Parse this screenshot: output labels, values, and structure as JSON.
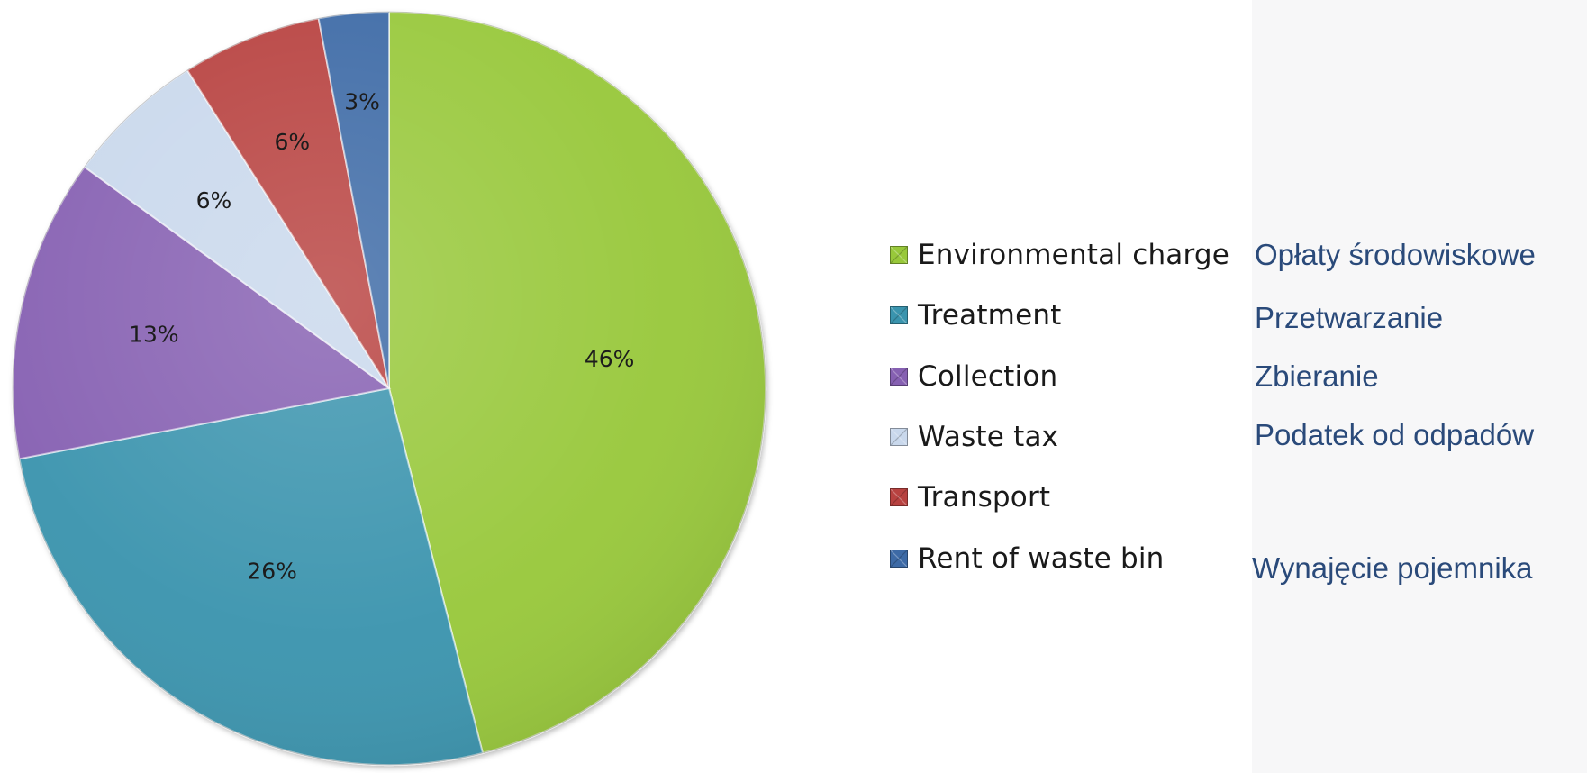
{
  "chart_data": {
    "type": "pie",
    "slices": [
      {
        "label": "Environmental charge",
        "value": 46,
        "value_label": "46%",
        "color": "#98c83a"
      },
      {
        "label": "Treatment",
        "value": 26,
        "value_label": "26%",
        "color": "#3a94ae"
      },
      {
        "label": "Collection",
        "value": 13,
        "value_label": "13%",
        "color": "#8660b2"
      },
      {
        "label": "Waste tax",
        "value": 6,
        "value_label": "6%",
        "color": "#c9d8ec"
      },
      {
        "label": "Transport",
        "value": 6,
        "value_label": "6%",
        "color": "#b84240"
      },
      {
        "label": "Rent of waste bin",
        "value": 3,
        "value_label": "3%",
        "color": "#3d6aa6"
      }
    ],
    "legend_position": "right"
  },
  "translations": [
    "Opłaty środowiskowe",
    "Przetwarzanie",
    "Zbieranie",
    "Podatek od odpadów",
    "Wynajęcie pojemnika"
  ],
  "colors": {
    "translation_text": "#2a4a7a",
    "right_panel_background": "#f7f7f8"
  }
}
